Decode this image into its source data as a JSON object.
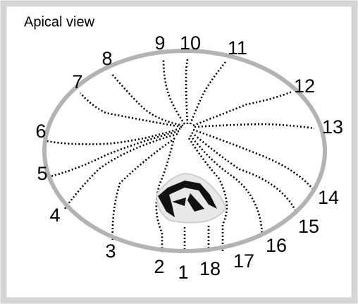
{
  "title": "Apical view",
  "labels": [
    "1",
    "2",
    "3",
    "4",
    "5",
    "6",
    "7",
    "8",
    "9",
    "10",
    "11",
    "12",
    "13",
    "14",
    "15",
    "16",
    "17",
    "18"
  ]
}
